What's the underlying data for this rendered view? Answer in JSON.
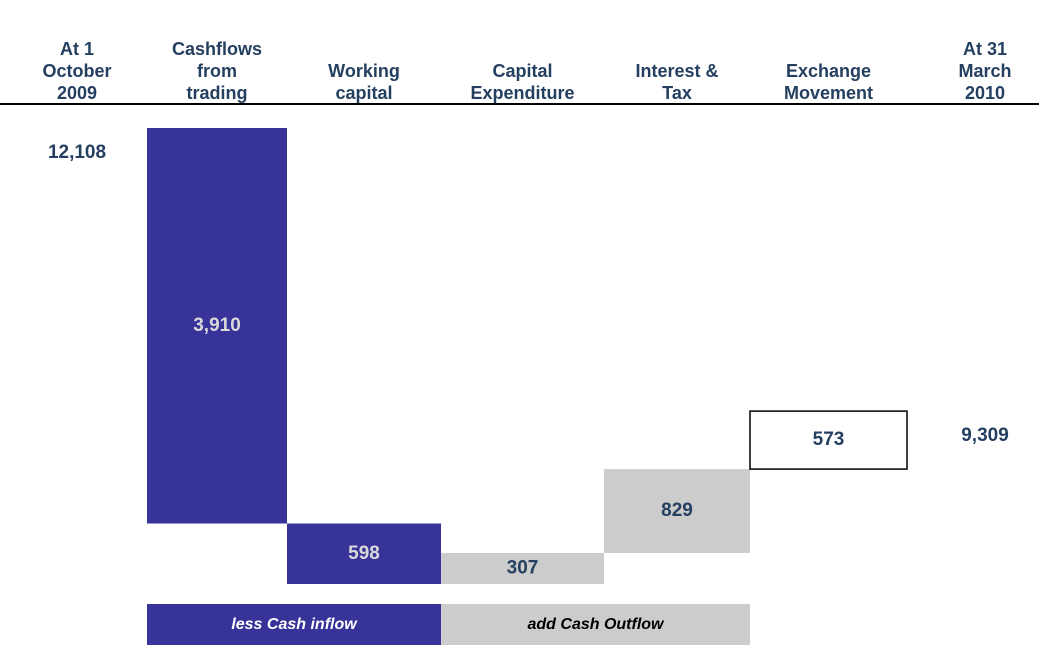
{
  "chart_data": {
    "type": "waterfall",
    "categories": [
      "At 1 October 2009",
      "Cashflows from trading",
      "Working capital",
      "Capital Expenditure",
      "Interest & Tax",
      "Exchange Movement",
      "At 31 March 2010"
    ],
    "values": [
      12108,
      3910,
      598,
      307,
      829,
      573,
      9309
    ],
    "value_labels": [
      "12,108",
      "3,910",
      "598",
      "307",
      "829",
      "573",
      "9,309"
    ],
    "measure": [
      "absolute",
      "decrease",
      "decrease",
      "increase",
      "increase",
      "increase",
      "absolute"
    ],
    "colors": [
      null,
      "#373399",
      "#373399",
      "#cccccc",
      "#cccccc",
      "#ffffff",
      null
    ],
    "legend": [
      {
        "label": "less Cash inflow",
        "color": "#373399"
      },
      {
        "label": "add Cash Outflow",
        "color": "#cccccc"
      }
    ]
  }
}
